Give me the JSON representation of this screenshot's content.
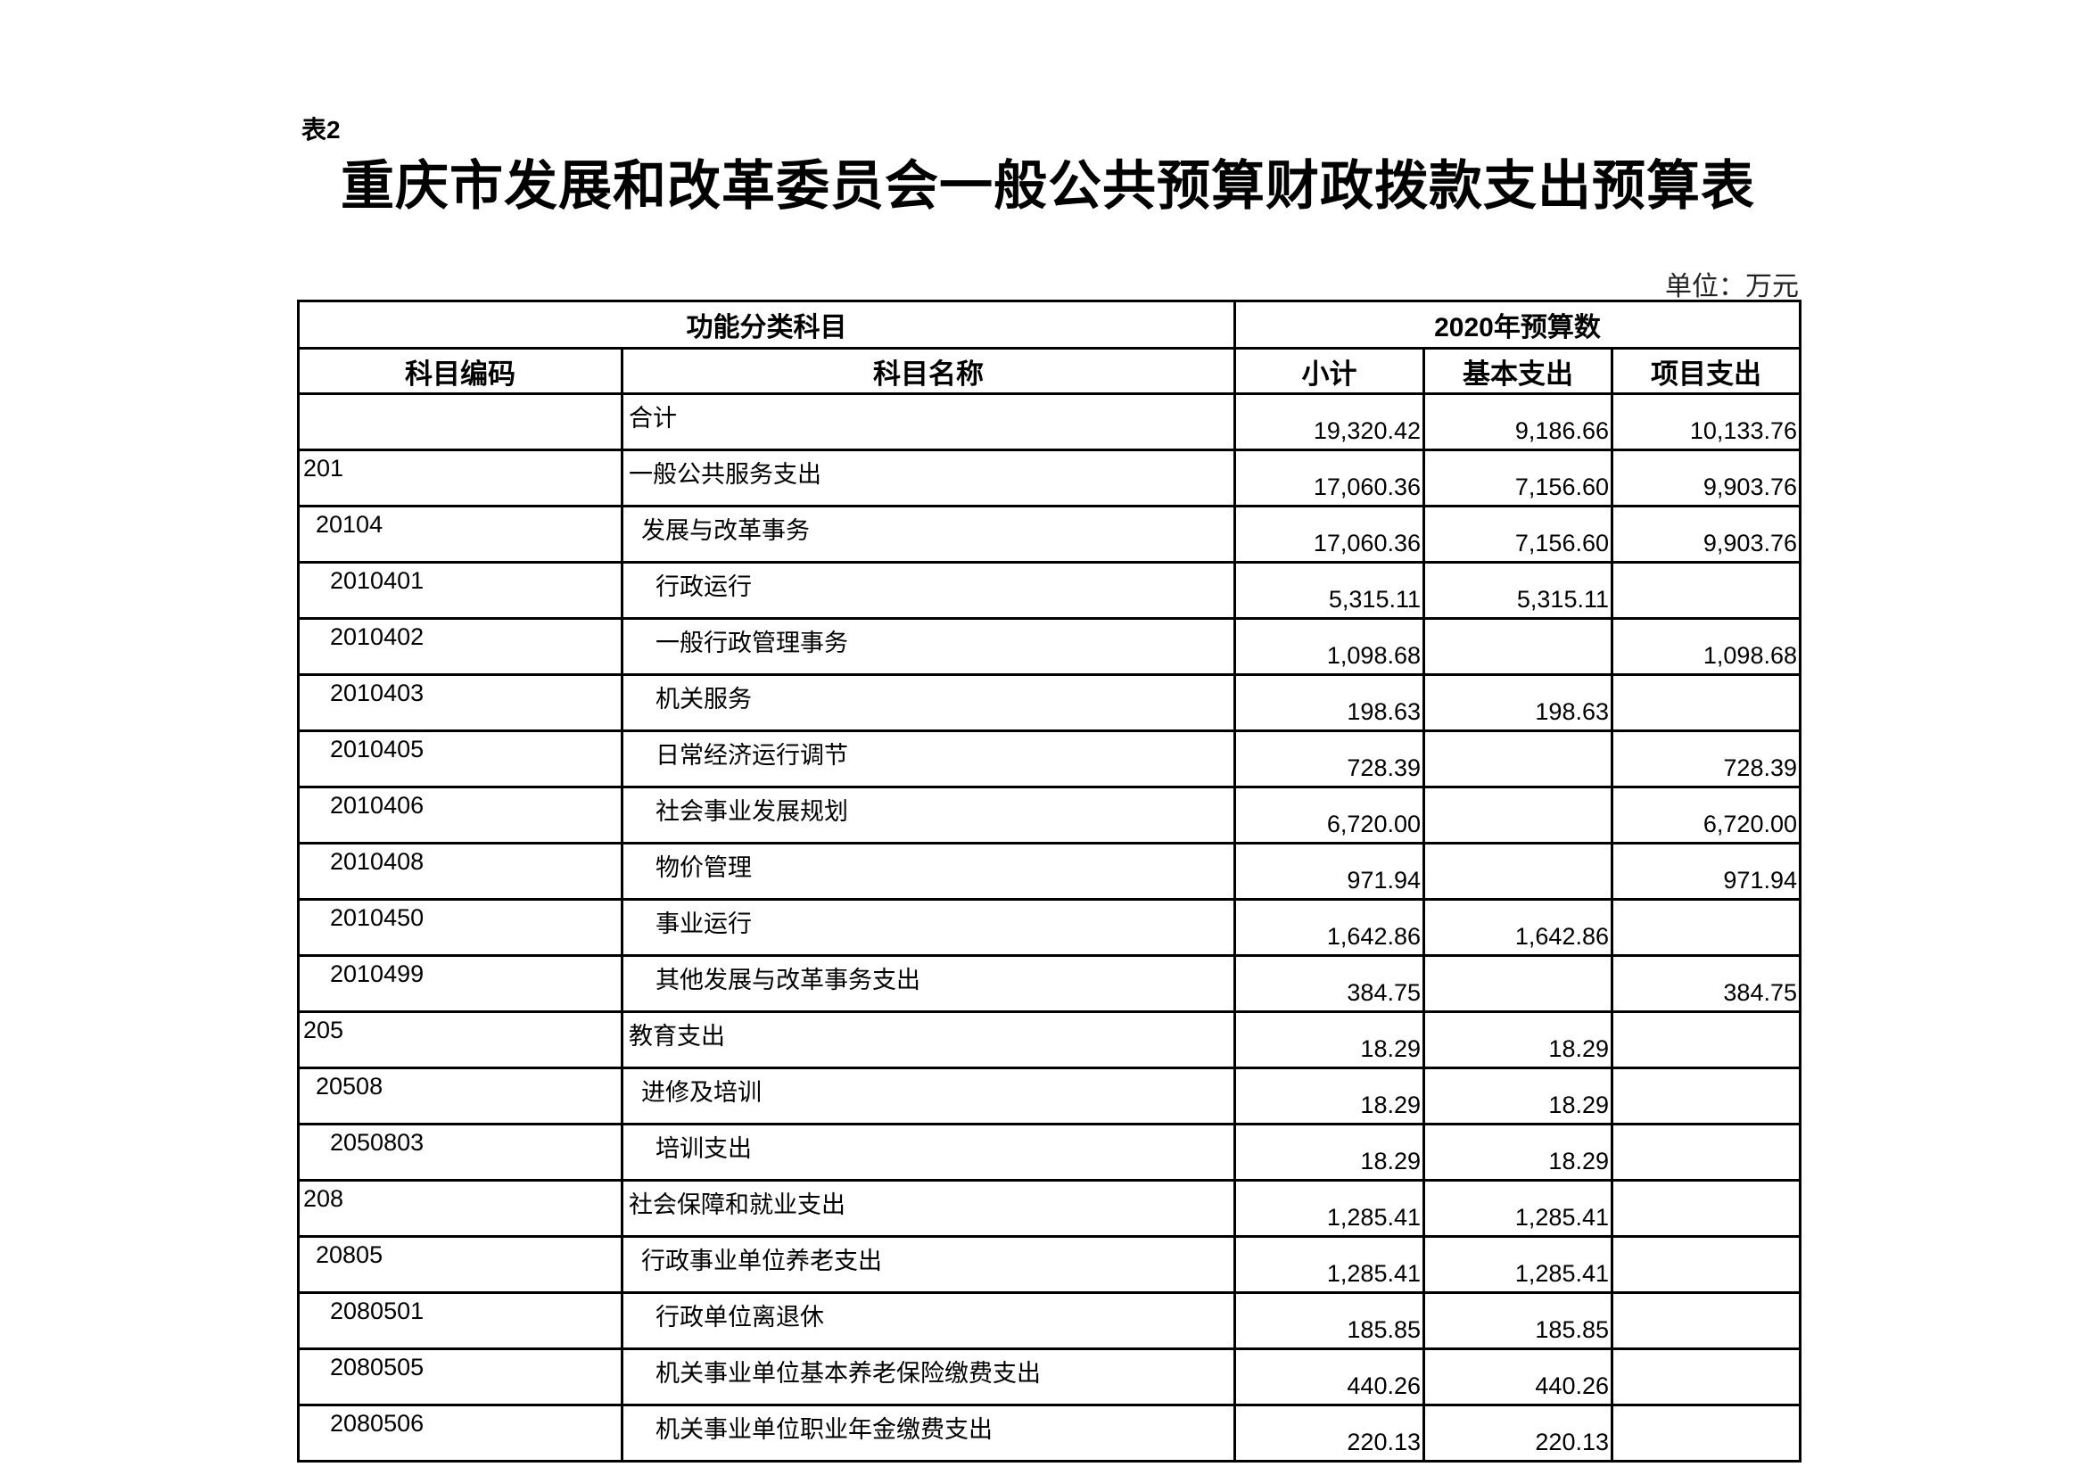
{
  "table_label": "表2",
  "title": "重庆市发展和改革委员会一般公共预算财政拨款支出预算表",
  "unit": "单位：万元",
  "header": {
    "group_left": "功能分类科目",
    "group_right": "2020年预算数",
    "columns": [
      "科目编码",
      "科目名称",
      "小计",
      "基本支出",
      "项目支出"
    ]
  },
  "rows": [
    {
      "code": "",
      "name": "合计",
      "level": 0,
      "subtotal": "19,320.42",
      "basic": "9,186.66",
      "project": "10,133.76"
    },
    {
      "code": "201",
      "name": "一般公共服务支出",
      "level": 0,
      "subtotal": "17,060.36",
      "basic": "7,156.60",
      "project": "9,903.76"
    },
    {
      "code": "20104",
      "name": "发展与改革事务",
      "level": 1,
      "subtotal": "17,060.36",
      "basic": "7,156.60",
      "project": "9,903.76"
    },
    {
      "code": "2010401",
      "name": "行政运行",
      "level": 2,
      "subtotal": "5,315.11",
      "basic": "5,315.11",
      "project": ""
    },
    {
      "code": "2010402",
      "name": "一般行政管理事务",
      "level": 2,
      "subtotal": "1,098.68",
      "basic": "",
      "project": "1,098.68"
    },
    {
      "code": "2010403",
      "name": "机关服务",
      "level": 2,
      "subtotal": "198.63",
      "basic": "198.63",
      "project": ""
    },
    {
      "code": "2010405",
      "name": "日常经济运行调节",
      "level": 2,
      "subtotal": "728.39",
      "basic": "",
      "project": "728.39"
    },
    {
      "code": "2010406",
      "name": "社会事业发展规划",
      "level": 2,
      "subtotal": "6,720.00",
      "basic": "",
      "project": "6,720.00"
    },
    {
      "code": "2010408",
      "name": "物价管理",
      "level": 2,
      "subtotal": "971.94",
      "basic": "",
      "project": "971.94"
    },
    {
      "code": "2010450",
      "name": "事业运行",
      "level": 2,
      "subtotal": "1,642.86",
      "basic": "1,642.86",
      "project": ""
    },
    {
      "code": "2010499",
      "name": "其他发展与改革事务支出",
      "level": 2,
      "subtotal": "384.75",
      "basic": "",
      "project": "384.75"
    },
    {
      "code": "205",
      "name": "教育支出",
      "level": 0,
      "subtotal": "18.29",
      "basic": "18.29",
      "project": ""
    },
    {
      "code": "20508",
      "name": "进修及培训",
      "level": 1,
      "subtotal": "18.29",
      "basic": "18.29",
      "project": ""
    },
    {
      "code": "2050803",
      "name": "培训支出",
      "level": 2,
      "subtotal": "18.29",
      "basic": "18.29",
      "project": ""
    },
    {
      "code": "208",
      "name": "社会保障和就业支出",
      "level": 0,
      "subtotal": "1,285.41",
      "basic": "1,285.41",
      "project": ""
    },
    {
      "code": "20805",
      "name": "行政事业单位养老支出",
      "level": 1,
      "subtotal": "1,285.41",
      "basic": "1,285.41",
      "project": ""
    },
    {
      "code": "2080501",
      "name": "行政单位离退休",
      "level": 2,
      "subtotal": "185.85",
      "basic": "185.85",
      "project": ""
    },
    {
      "code": "2080505",
      "name": "机关事业单位基本养老保险缴费支出",
      "level": 2,
      "subtotal": "440.26",
      "basic": "440.26",
      "project": ""
    },
    {
      "code": "2080506",
      "name": "机关事业单位职业年金缴费支出",
      "level": 2,
      "subtotal": "220.13",
      "basic": "220.13",
      "project": ""
    }
  ]
}
